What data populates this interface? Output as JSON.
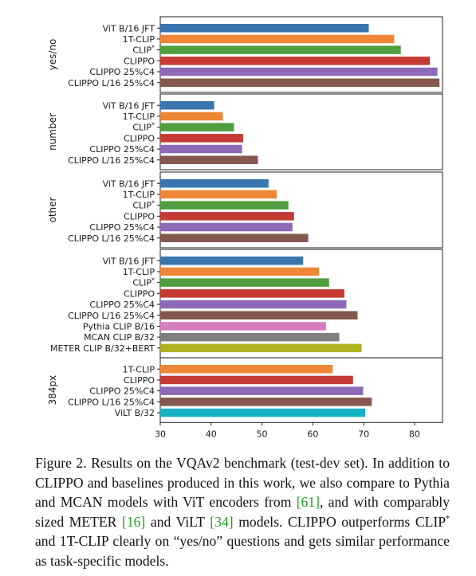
{
  "chart_data": {
    "type": "bar",
    "orientation": "horizontal",
    "x_ticks": [
      30,
      40,
      50,
      60,
      70,
      80
    ],
    "xlim": [
      30,
      85.5
    ],
    "colors": {
      "ViT B/16 JFT": "#3a75af",
      "1T-CLIP": "#ef8636",
      "CLIP*": "#519e3e",
      "CLIPPO": "#c53a32",
      "CLIPPO 25%C4": "#8d6ab8",
      "CLIPPO L/16 25%C4": "#84584e",
      "Pythia CLIP B/16": "#d57dbe",
      "MCAN CLIP B/32": "#7f7f7f",
      "METER CLIP B/32+BERT": "#afb31e",
      "ViLT B/32": "#16b2c5"
    },
    "panels": [
      {
        "name": "yes/no",
        "bars": [
          {
            "label": "ViT B/16 JFT",
            "value": 71.0
          },
          {
            "label": "1T-CLIP",
            "value": 76.0
          },
          {
            "label": "CLIP*",
            "value": 77.3
          },
          {
            "label": "CLIPPO",
            "value": 83.0
          },
          {
            "label": "CLIPPO 25%C4",
            "value": 84.5
          },
          {
            "label": "CLIPPO L/16 25%C4",
            "value": 84.9
          }
        ]
      },
      {
        "name": "number",
        "bars": [
          {
            "label": "ViT B/16 JFT",
            "value": 40.6
          },
          {
            "label": "1T-CLIP",
            "value": 42.3
          },
          {
            "label": "CLIP*",
            "value": 44.5
          },
          {
            "label": "CLIPPO",
            "value": 46.3
          },
          {
            "label": "CLIPPO 25%C4",
            "value": 46.1
          },
          {
            "label": "CLIPPO L/16 25%C4",
            "value": 49.2
          }
        ]
      },
      {
        "name": "other",
        "bars": [
          {
            "label": "ViT B/16 JFT",
            "value": 51.3
          },
          {
            "label": "1T-CLIP",
            "value": 52.9
          },
          {
            "label": "CLIP*",
            "value": 55.2
          },
          {
            "label": "CLIPPO",
            "value": 56.3
          },
          {
            "label": "CLIPPO 25%C4",
            "value": 56.0
          },
          {
            "label": "CLIPPO L/16 25%C4",
            "value": 59.1
          }
        ]
      },
      {
        "name": "",
        "bars": [
          {
            "label": "ViT B/16 JFT",
            "value": 58.1
          },
          {
            "label": "1T-CLIP",
            "value": 61.2
          },
          {
            "label": "CLIP*",
            "value": 63.2
          },
          {
            "label": "CLIPPO",
            "value": 66.2
          },
          {
            "label": "CLIPPO 25%C4",
            "value": 66.6
          },
          {
            "label": "CLIPPO L/16 25%C4",
            "value": 68.8
          },
          {
            "label": "Pythia CLIP B/16",
            "value": 62.6
          },
          {
            "label": "MCAN CLIP B/32",
            "value": 65.2
          },
          {
            "label": "METER CLIP B/32+BERT",
            "value": 69.6
          }
        ]
      },
      {
        "name": "384px",
        "bars": [
          {
            "label": "1T-CLIP",
            "value": 63.9
          },
          {
            "label": "CLIPPO",
            "value": 67.9
          },
          {
            "label": "CLIPPO 25%C4",
            "value": 69.9
          },
          {
            "label": "CLIPPO L/16 25%C4",
            "value": 71.6
          },
          {
            "label": "ViLT B/32",
            "value": 70.3
          }
        ]
      }
    ]
  },
  "caption": {
    "lead": "Figure 2. Results on the VQAv2 benchmark (test-dev set). In addition to CLIPPO and baselines produced in this work, we also compare to Pythia and MCAN models with ViT encoders from ",
    "ref1": "[61]",
    "mid1": ", and with comparably sized METER ",
    "ref2": "[16]",
    "mid2": " and ViLT ",
    "ref3": "[34]",
    "mid3": " models. CLIPPO outperforms CLIP",
    "sup": "*",
    "tail": " and 1T-CLIP clearly on “yes/no” questions and gets similar performance as task-specific models."
  }
}
